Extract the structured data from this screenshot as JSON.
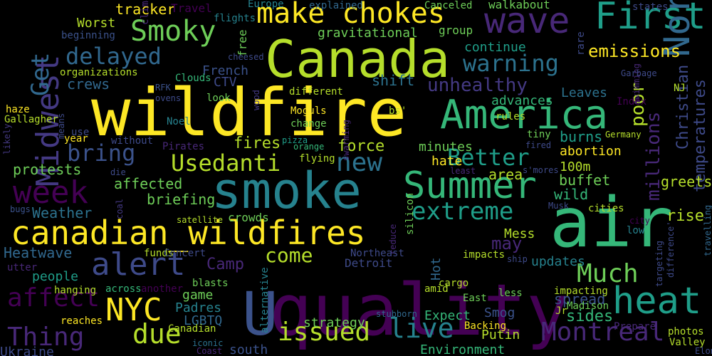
{
  "words": [
    {
      "text": "wildfire",
      "color": "#fde725"
    },
    {
      "text": "air",
      "color": "#35b779"
    },
    {
      "text": "quality",
      "color": "#440154"
    },
    {
      "text": "Canada",
      "color": "#b5de2b"
    },
    {
      "text": "smoke",
      "color": "#26828e"
    },
    {
      "text": "canadian_wildfires",
      "color": "#fde725"
    },
    {
      "text": "U",
      "color": "#3b528b"
    },
    {
      "text": "America",
      "color": "#35b779"
    },
    {
      "text": "Summer",
      "color": "#35b779"
    },
    {
      "text": "wave",
      "color": "#482878"
    },
    {
      "text": "First",
      "color": "#1f9e89"
    },
    {
      "text": "North",
      "color": "#31688e"
    },
    {
      "text": "make chokes",
      "color": "#fde725"
    },
    {
      "text": "Smoky",
      "color": "#6ece58"
    },
    {
      "text": "week",
      "color": "#440154"
    },
    {
      "text": "Midwest",
      "color": "#443983"
    },
    {
      "text": "Get",
      "color": "#31688e"
    },
    {
      "text": "heat",
      "color": "#1f9e89"
    },
    {
      "text": "alert",
      "color": "#3e4a89"
    },
    {
      "text": "Montreal",
      "color": "#482878"
    },
    {
      "text": "NYC",
      "color": "#fde725"
    },
    {
      "text": "due",
      "color": "#b5de2b"
    },
    {
      "text": "live",
      "color": "#26828e"
    },
    {
      "text": "issued",
      "color": "#b5de2b"
    },
    {
      "text": "Thing",
      "color": "#482878"
    },
    {
      "text": "affect",
      "color": "#440154"
    },
    {
      "text": "Much",
      "color": "#6ece58"
    },
    {
      "text": "extreme",
      "color": "#1f9e89"
    },
    {
      "text": "Better",
      "color": "#1f9e89"
    },
    {
      "text": "Usedanti",
      "color": "#b5de2b"
    },
    {
      "text": "delayed",
      "color": "#31688e"
    },
    {
      "text": "bring",
      "color": "#3b528b"
    },
    {
      "text": "new",
      "color": "#2c728e"
    },
    {
      "text": "warning",
      "color": "#2c728e"
    },
    {
      "text": "millions",
      "color": "#482878"
    },
    {
      "text": "poor",
      "color": "#b5de2b"
    },
    {
      "text": "come",
      "color": "#b5de2b"
    },
    {
      "text": "emissions",
      "color": "#fde725"
    },
    {
      "text": "unhealthy",
      "color": "#443983"
    },
    {
      "text": "temperatures",
      "color": "#3e4a89"
    },
    {
      "text": "Christian",
      "color": "#3e4a89"
    },
    {
      "text": "may",
      "color": "#482878"
    },
    {
      "text": "Heatwave",
      "color": "#31688e"
    },
    {
      "text": "protests",
      "color": "#6ece58"
    },
    {
      "text": "affected",
      "color": "#6ece58"
    },
    {
      "text": "briefing",
      "color": "#6ece58"
    },
    {
      "text": "Weather",
      "color": "#2c728e"
    },
    {
      "text": "fires",
      "color": "#b5de2b"
    },
    {
      "text": "force",
      "color": "#b5de2b"
    },
    {
      "text": "crews",
      "color": "#31688e"
    },
    {
      "text": "shift",
      "color": "#2c728e"
    },
    {
      "text": "continue",
      "color": "#1f9e89"
    },
    {
      "text": "gravitational",
      "color": "#6ece58"
    },
    {
      "text": "tracker",
      "color": "#fde725"
    },
    {
      "text": "French",
      "color": "#3b528b"
    },
    {
      "text": "people",
      "color": "#1f9e89"
    },
    {
      "text": "strategy",
      "color": "#6ece58"
    },
    {
      "text": "Detroit",
      "color": "#3e4a89"
    },
    {
      "text": "Camp",
      "color": "#482878"
    },
    {
      "text": "updates",
      "color": "#26828e"
    },
    {
      "text": "spread",
      "color": "#3b528b"
    },
    {
      "text": "sides",
      "color": "#35b779"
    },
    {
      "text": "buffet",
      "color": "#6ece58"
    },
    {
      "text": "wild",
      "color": "#35b779"
    },
    {
      "text": "burns",
      "color": "#1f9e89"
    },
    {
      "text": "abortion",
      "color": "#fde725"
    },
    {
      "text": "100m",
      "color": "#b5de2b"
    },
    {
      "text": "rise",
      "color": "#b5de2b"
    },
    {
      "text": "greets",
      "color": "#b5de2b"
    },
    {
      "text": "area",
      "color": "#b5de2b"
    },
    {
      "text": "advances",
      "color": "#35b779"
    },
    {
      "text": "Leaves",
      "color": "#2c728e"
    },
    {
      "text": "Padres",
      "color": "#26828e"
    },
    {
      "text": "LGBTQ",
      "color": "#31688e"
    },
    {
      "text": "game",
      "color": "#6ece58"
    },
    {
      "text": "south",
      "color": "#3b528b"
    },
    {
      "text": "Environment",
      "color": "#35b779"
    },
    {
      "text": "Putin",
      "color": "#b5de2b"
    },
    {
      "text": "Expect",
      "color": "#35b779"
    },
    {
      "text": "Smog",
      "color": "#3b528b"
    },
    {
      "text": "Ukraine",
      "color": "#3e4a89"
    },
    {
      "text": "Mess",
      "color": "#b5de2b"
    },
    {
      "text": "Hot",
      "color": "#31688e"
    },
    {
      "text": "hate",
      "color": "#fde725"
    },
    {
      "text": "minutes",
      "color": "#6ece58"
    },
    {
      "text": "Worst",
      "color": "#b5de2b"
    },
    {
      "text": "climate",
      "color": "#482878"
    },
    {
      "text": "Travel",
      "color": "#440154"
    },
    {
      "text": "flights",
      "color": "#26828e"
    },
    {
      "text": "free",
      "color": "#6ece58"
    },
    {
      "text": "Europe",
      "color": "#26828e"
    },
    {
      "text": "explained",
      "color": "#31688e"
    },
    {
      "text": "Canceled",
      "color": "#6ece58"
    },
    {
      "text": "walkabout",
      "color": "#6ece58"
    },
    {
      "text": "group",
      "color": "#6ece58"
    },
    {
      "text": "states",
      "color": "#3e4a89"
    },
    {
      "text": "rare",
      "color": "#3e4a89"
    },
    {
      "text": "beginning",
      "color": "#3b528b"
    },
    {
      "text": "organizations",
      "color": "#b5de2b"
    },
    {
      "text": "Clouds",
      "color": "#35b779"
    },
    {
      "text": "RFK",
      "color": "#3b528b"
    },
    {
      "text": "ovens",
      "color": "#3e4a89"
    },
    {
      "text": "cheesed",
      "color": "#3e4a89"
    },
    {
      "text": "CTV",
      "color": "#3e4a89"
    },
    {
      "text": "look",
      "color": "#6ece58"
    },
    {
      "text": "different",
      "color": "#b5de2b"
    },
    {
      "text": "Moguls",
      "color": "#fde725"
    },
    {
      "text": "change",
      "color": "#6ece58"
    },
    {
      "text": "bs'",
      "color": "#b5de2b"
    },
    {
      "text": "Noel",
      "color": "#26828e"
    },
    {
      "text": "pizza",
      "color": "#1f9e89"
    },
    {
      "text": "orange",
      "color": "#35b779"
    },
    {
      "text": "flying",
      "color": "#b5de2b"
    },
    {
      "text": "swarming",
      "color": "#482878"
    },
    {
      "text": "wood",
      "color": "#443983"
    },
    {
      "text": "means",
      "color": "#3e4a89"
    },
    {
      "text": "haze",
      "color": "#fde725"
    },
    {
      "text": "Gallagher",
      "color": "#b5de2b"
    },
    {
      "text": "likely",
      "color": "#443983"
    },
    {
      "text": "year",
      "color": "#fde725"
    },
    {
      "text": "use",
      "color": "#3e4a89"
    },
    {
      "text": "without",
      "color": "#3e4a89"
    },
    {
      "text": "Pirates",
      "color": "#482878"
    },
    {
      "text": "die",
      "color": "#3e4a89"
    },
    {
      "text": "coal",
      "color": "#443983"
    },
    {
      "text": "satellite",
      "color": "#b5de2b"
    },
    {
      "text": "crowds",
      "color": "#6ece58"
    },
    {
      "text": "bugs",
      "color": "#3b528b"
    },
    {
      "text": "silicon",
      "color": "#6ece58"
    },
    {
      "text": "reduce",
      "color": "#482878"
    },
    {
      "text": "Northeast",
      "color": "#3e4a89"
    },
    {
      "text": "impacts",
      "color": "#b5de2b"
    },
    {
      "text": "ship",
      "color": "#3e4a89"
    },
    {
      "text": "cargo",
      "color": "#b5de2b"
    },
    {
      "text": "amid",
      "color": "#b5de2b"
    },
    {
      "text": "funds",
      "color": "#b5de2b"
    },
    {
      "text": "Concert",
      "color": "#3e4a89"
    },
    {
      "text": "utter",
      "color": "#482878"
    },
    {
      "text": "hanging",
      "color": "#b5de2b"
    },
    {
      "text": "across",
      "color": "#35b779"
    },
    {
      "text": "another",
      "color": "#440154"
    },
    {
      "text": "blasts",
      "color": "#6ece58"
    },
    {
      "text": "alternative",
      "color": "#26828e"
    },
    {
      "text": "reaches",
      "color": "#fde725"
    },
    {
      "text": "Canadian",
      "color": "#b5de2b"
    },
    {
      "text": "iconic",
      "color": "#2c728e"
    },
    {
      "text": "Coast",
      "color": "#482878"
    },
    {
      "text": "stubborn",
      "color": "#31688e"
    },
    {
      "text": "East",
      "color": "#6ece58"
    },
    {
      "text": "less",
      "color": "#6ece58"
    },
    {
      "text": "Backing",
      "color": "#fde725"
    },
    {
      "text": "impacting",
      "color": "#b5de2b"
    },
    {
      "text": "Madison",
      "color": "#6ece58"
    },
    {
      "text": "Jr",
      "color": "#b5de2b"
    },
    {
      "text": "Prepare",
      "color": "#482878"
    },
    {
      "text": "photos",
      "color": "#b5de2b"
    },
    {
      "text": "Valley",
      "color": "#b5de2b"
    },
    {
      "text": "Elon",
      "color": "#3e4a89"
    },
    {
      "text": "targeting",
      "color": "#3e4a89"
    },
    {
      "text": "difference'",
      "color": "#3e4a89"
    },
    {
      "text": "travelling",
      "color": "#31688e"
    },
    {
      "text": "low",
      "color": "#26828e"
    },
    {
      "text": "city",
      "color": "#440154"
    },
    {
      "text": "cities",
      "color": "#b5de2b"
    },
    {
      "text": "Musk",
      "color": "#3e4a89"
    },
    {
      "text": "s'mores",
      "color": "#3e4a89"
    },
    {
      "text": "least",
      "color": "#482878"
    },
    {
      "text": "fired",
      "color": "#3e4a89"
    },
    {
      "text": "tiny",
      "color": "#6ece58"
    },
    {
      "text": "rules",
      "color": "#b5de2b"
    },
    {
      "text": "Germany",
      "color": "#b5de2b"
    },
    {
      "text": "Index",
      "color": "#440154"
    },
    {
      "text": "NJ",
      "color": "#b5de2b"
    },
    {
      "text": "swimming",
      "color": "#482878"
    },
    {
      "text": "Garbage",
      "color": "#3e4a89"
    }
  ]
}
